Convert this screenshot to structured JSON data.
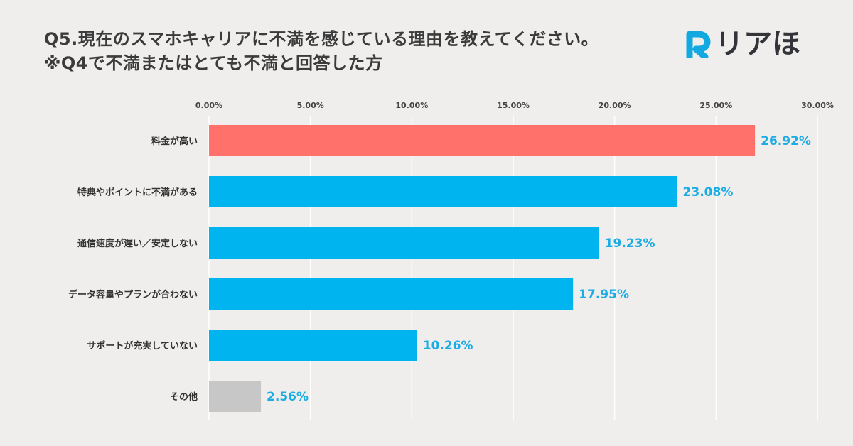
{
  "header": {
    "title_line1": "Q5.現在のスマホキャリアに不満を感じている理由を教えてください。",
    "title_line2": "※Q4で不満またはとても不満と回答した方"
  },
  "logo": {
    "text": "リアほ",
    "icon": "r-letter-icon",
    "color": "#12a9e0"
  },
  "chart_data": {
    "type": "bar",
    "orientation": "horizontal",
    "title": "Q5.現在のスマホキャリアに不満を感じている理由を教えてください。",
    "subtitle": "※Q4で不満またはとても不満と回答した方",
    "categories": [
      "料金が高い",
      "特典やポイントに不満がある",
      "通信速度が遅い／安定しない",
      "データ容量やプランが合わない",
      "サポートが充実していない",
      "その他"
    ],
    "values": [
      26.92,
      23.08,
      19.23,
      17.95,
      10.26,
      2.56
    ],
    "value_labels": [
      "26.92%",
      "23.08%",
      "19.23%",
      "17.95%",
      "10.26%",
      "2.56%"
    ],
    "bar_colors": [
      "#ff716a",
      "#00b4f0",
      "#00b4f0",
      "#00b4f0",
      "#00b4f0",
      "#c7c7c7"
    ],
    "label_color": "#1aace4",
    "xlim": [
      0,
      30
    ],
    "ticks": [
      0,
      5,
      10,
      15,
      20,
      25,
      30
    ],
    "tick_labels": [
      "0.00%",
      "5.00%",
      "10.00%",
      "15.00%",
      "20.00%",
      "25.00%",
      "30.00%"
    ],
    "axis_position": "top",
    "grid": "vertical",
    "grid_color": "#ffffff"
  }
}
